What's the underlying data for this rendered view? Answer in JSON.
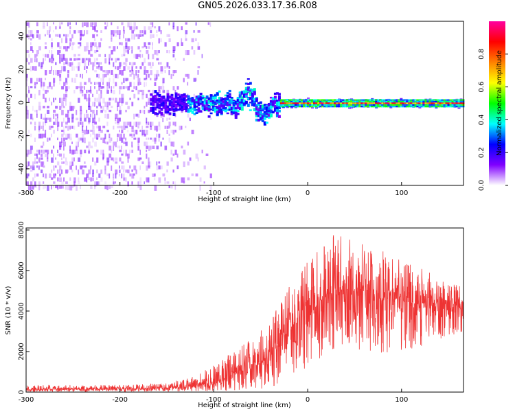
{
  "title": "GN05.2026.033.17.36.R08",
  "chart_data": [
    {
      "type": "heatmap",
      "title": "GN05.2026.033.17.36.R08",
      "xlabel": "Height of straight line (km)",
      "ylabel": "Frequency (Hz)",
      "xlim": [
        -300,
        166
      ],
      "ylim": [
        -50,
        49
      ],
      "xticks": [
        -300,
        -200,
        -100,
        0,
        100
      ],
      "yticks": [
        -40,
        -20,
        0,
        20,
        40
      ],
      "colorbar": {
        "label": "Normalized spectral amplitude",
        "range": [
          0.0,
          1.0
        ],
        "ticks": [
          0.0,
          0.2,
          0.4,
          0.6,
          0.8
        ],
        "tick_labels": [
          "0.0",
          "0.2",
          "0.4",
          "0.6",
          "0.8"
        ],
        "colors": [
          "#ffffff",
          "#8000ff",
          "#0000ff",
          "#00ffff",
          "#00ff00",
          "#ffff00",
          "#ff8000",
          "#ff0000",
          "#ff00a0"
        ]
      },
      "features": {
        "noise_region_x": [
          -300,
          -120
        ],
        "noise_level": 0.1,
        "turbulent_region_x": [
          -170,
          -30
        ],
        "turbulent_level": 0.3,
        "stable_line_x": [
          -30,
          166
        ],
        "stable_line_frequency": 0,
        "stable_line_level": 0.95
      }
    },
    {
      "type": "line",
      "xlabel": "Height of straight line (km)",
      "ylabel": "SNR (10 * v/v)",
      "xlim": [
        -300,
        166
      ],
      "ylim": [
        0,
        8100
      ],
      "xticks": [
        -300,
        -200,
        -100,
        0,
        100
      ],
      "yticks": [
        0,
        2000,
        4000,
        6000,
        8000
      ],
      "series": [
        {
          "name": "SNR",
          "color": "#ee3333",
          "envelope": {
            "x": [
              -300,
              -250,
              -200,
              -150,
              -120,
              -100,
              -80,
              -60,
              -40,
              -20,
              0,
              20,
              40,
              60,
              80,
              100,
              120,
              140,
              166
            ],
            "mean": [
              120,
              150,
              150,
              200,
              300,
              500,
              800,
              1200,
              1800,
              3000,
              4200,
              4800,
              5000,
              4900,
              4700,
              4500,
              4300,
              4200,
              4100
            ],
            "max": [
              350,
              350,
              350,
              450,
              800,
              1400,
              2000,
              2600,
              3500,
              5200,
              6500,
              7600,
              8100,
              7400,
              7000,
              6800,
              6200,
              5600,
              5200
            ],
            "min": [
              20,
              20,
              20,
              30,
              40,
              60,
              80,
              120,
              200,
              500,
              1200,
              1800,
              2200,
              2000,
              1900,
              1900,
              2100,
              2600,
              2900
            ]
          }
        }
      ]
    }
  ]
}
